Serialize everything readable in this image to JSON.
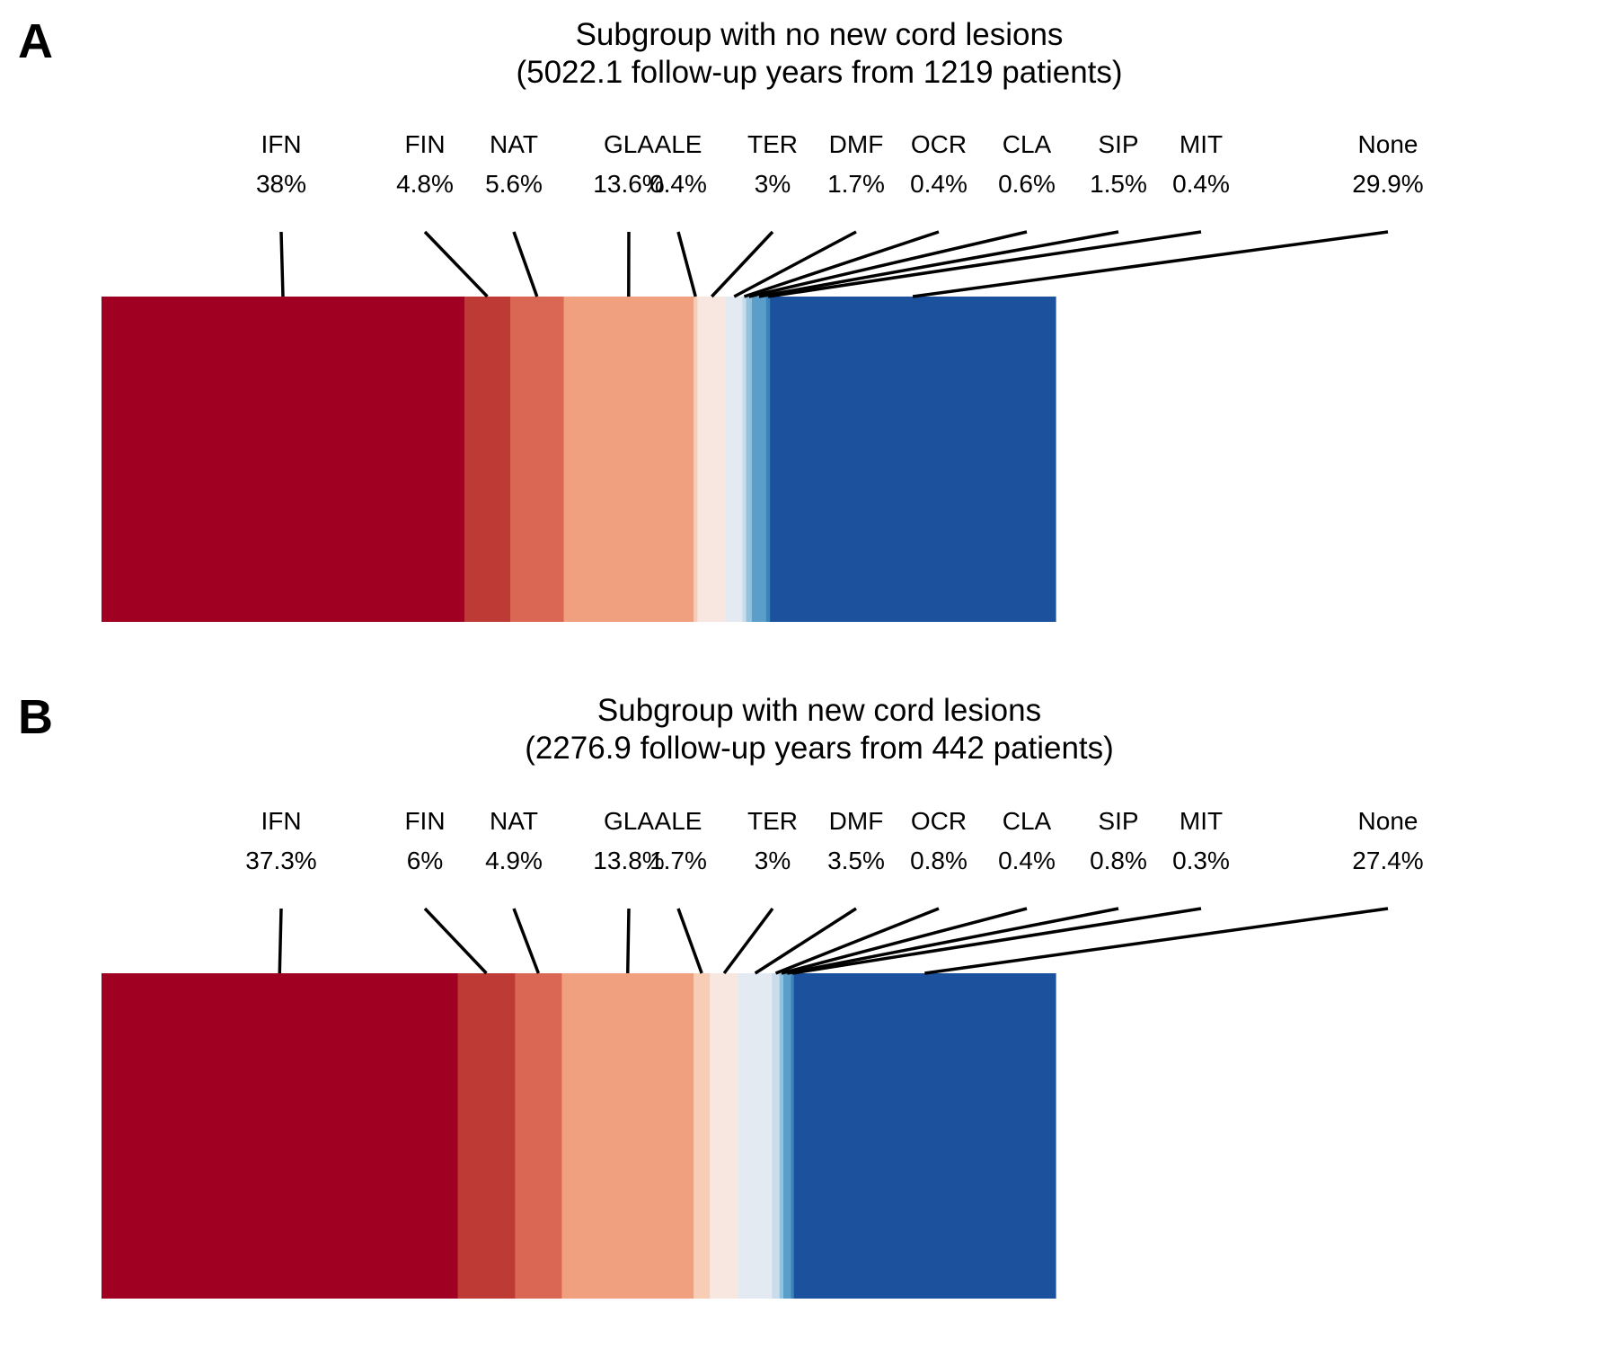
{
  "chart_data": [
    {
      "type": "bar",
      "panel": "A",
      "title": "Subgroup with no new cord lesions",
      "subtitle": "(5022.1 follow-up years from 1219 patients)",
      "orientation": "horizontal-stacked",
      "categories": [
        "IFN",
        "FIN",
        "NAT",
        "GLA",
        "ALE",
        "TER",
        "DMF",
        "OCR",
        "CLA",
        "SIP",
        "MIT",
        "None"
      ],
      "pct_labels": [
        "38%",
        "4.8%",
        "5.6%",
        "13.6%",
        "0.4%",
        "3%",
        "1.7%",
        "0.4%",
        "0.6%",
        "1.5%",
        "0.4%",
        "29.9%"
      ],
      "values": [
        38,
        4.8,
        5.6,
        13.6,
        0.4,
        3,
        1.7,
        0.4,
        0.6,
        1.5,
        0.4,
        29.9
      ]
    },
    {
      "type": "bar",
      "panel": "B",
      "title": "Subgroup with new cord lesions",
      "subtitle": "(2276.9 follow-up years from 442 patients)",
      "orientation": "horizontal-stacked",
      "categories": [
        "IFN",
        "FIN",
        "NAT",
        "GLA",
        "ALE",
        "TER",
        "DMF",
        "OCR",
        "CLA",
        "SIP",
        "MIT",
        "None"
      ],
      "pct_labels": [
        "37.3%",
        "6%",
        "4.9%",
        "13.8%",
        "1.7%",
        "3%",
        "3.5%",
        "0.8%",
        "0.4%",
        "0.8%",
        "0.3%",
        "27.4%"
      ],
      "values": [
        37.3,
        6,
        4.9,
        13.8,
        1.7,
        3,
        3.5,
        0.8,
        0.4,
        0.8,
        0.3,
        27.4
      ]
    }
  ],
  "segment_colors": [
    "#a00021",
    "#be3a35",
    "#da6753",
    "#f0a07f",
    "#f8cdb6",
    "#f8e6e1",
    "#e3eaf2",
    "#c8dcec",
    "#92c2dd",
    "#5a9ec9",
    "#3a83bc",
    "#1c529d"
  ]
}
